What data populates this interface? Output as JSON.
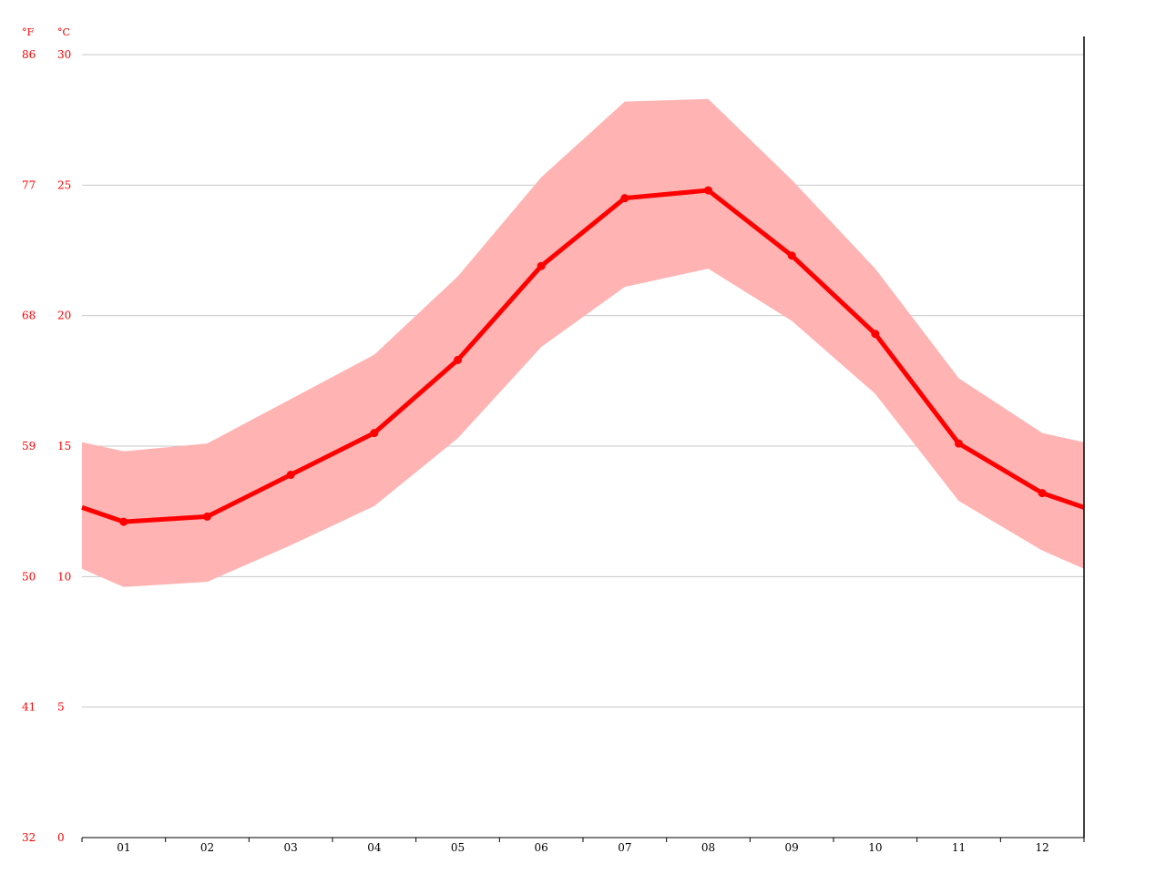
{
  "chart_data": {
    "type": "line",
    "categories": [
      "01",
      "02",
      "03",
      "04",
      "05",
      "06",
      "07",
      "08",
      "09",
      "10",
      "11",
      "12"
    ],
    "series": [
      {
        "values": [
          12.1,
          12.3,
          13.9,
          15.5,
          18.3,
          21.9,
          24.5,
          24.8,
          22.3,
          19.3,
          15.1,
          13.2
        ]
      }
    ],
    "band": {
      "lower": [
        9.6,
        9.8,
        11.2,
        12.7,
        15.3,
        18.8,
        21.1,
        21.8,
        19.8,
        17.0,
        12.9,
        11.0
      ],
      "upper": [
        14.8,
        15.1,
        16.8,
        18.5,
        21.5,
        25.3,
        28.2,
        28.3,
        25.2,
        21.8,
        17.6,
        15.5
      ]
    },
    "ylim": [
      0,
      30
    ],
    "y_ticks_c": [
      "0",
      "5",
      "10",
      "15",
      "20",
      "25",
      "30"
    ],
    "y_ticks_f": [
      "32",
      "41",
      "50",
      "59",
      "68",
      "77",
      "86"
    ],
    "unit_f": "°F",
    "unit_c": "°C",
    "grid": true,
    "colors": {
      "line": "#ff0000",
      "band": "#ffb3b3",
      "axis_labels": "#ff0000",
      "grid": "#c8c8c8",
      "axis": "#000000"
    }
  }
}
